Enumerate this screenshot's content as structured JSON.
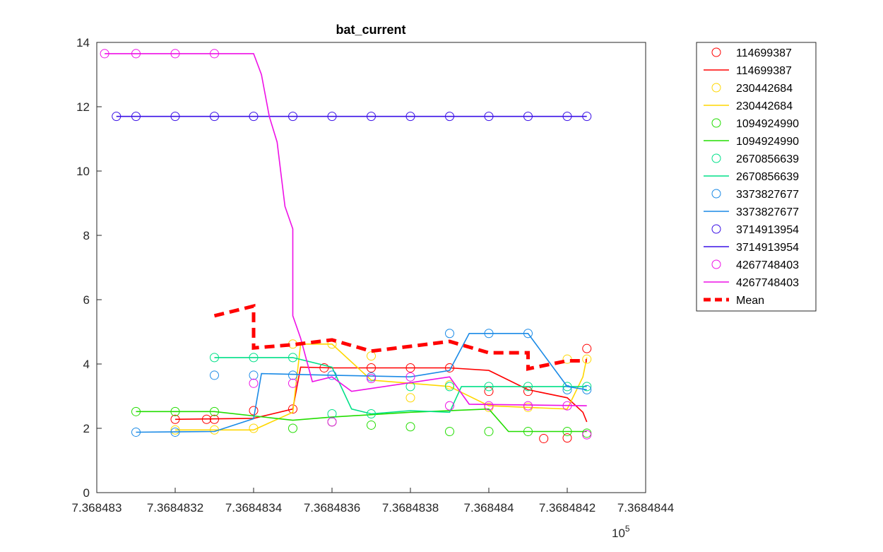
{
  "chart_data": {
    "type": "line",
    "title": "bat_current",
    "xlabel": "",
    "ylabel": "",
    "x_exponent_label": "10",
    "x_exponent": "5",
    "xlim": [
      7.368483,
      7.3684844
    ],
    "ylim": [
      0,
      14
    ],
    "x_ticks": [
      7.368483,
      7.3684832,
      7.3684834,
      7.3684836,
      7.3684838,
      7.368484,
      7.3684842,
      7.3684844
    ],
    "x_tick_labels": [
      "7.368483",
      "7.3684832",
      "7.3684834",
      "7.3684836",
      "7.3684838",
      "7.368484",
      "7.3684842",
      "7.3684844"
    ],
    "y_ticks": [
      0,
      2,
      4,
      6,
      8,
      10,
      12,
      14
    ],
    "y_tick_labels": [
      "0",
      "2",
      "4",
      "6",
      "8",
      "10",
      "12",
      "14"
    ],
    "grid": false,
    "legend_position": "outside-top-right",
    "series": [
      {
        "name": "114699387",
        "color": "#ff0000",
        "line": [
          [
            7.3684832,
            2.28
          ],
          [
            7.3684834,
            2.31
          ],
          [
            7.3684835,
            2.6
          ],
          [
            7.36848352,
            3.9
          ],
          [
            7.3684836,
            3.88
          ],
          [
            7.3684839,
            3.88
          ],
          [
            7.368484,
            3.8
          ],
          [
            7.3684841,
            3.2
          ],
          [
            7.3684842,
            2.95
          ],
          [
            7.36848424,
            2.5
          ],
          [
            7.36848425,
            2.2
          ]
        ],
        "points": [
          [
            7.3684832,
            2.28
          ],
          [
            7.36848328,
            2.28
          ],
          [
            7.3684833,
            2.28
          ],
          [
            7.3684834,
            2.55
          ],
          [
            7.3684835,
            2.6
          ],
          [
            7.36848358,
            3.88
          ],
          [
            7.3684837,
            3.88
          ],
          [
            7.3684838,
            3.88
          ],
          [
            7.3684839,
            3.88
          ],
          [
            7.368484,
            3.15
          ],
          [
            7.3684841,
            3.15
          ],
          [
            7.36848414,
            1.68
          ],
          [
            7.3684842,
            1.7
          ],
          [
            7.36848425,
            4.48
          ]
        ]
      },
      {
        "name": "230442684",
        "color": "#ffd700",
        "line": [
          [
            7.3684832,
            1.95
          ],
          [
            7.3684834,
            1.95
          ],
          [
            7.3684835,
            2.5
          ],
          [
            7.36848352,
            4.62
          ],
          [
            7.3684836,
            4.62
          ],
          [
            7.3684837,
            3.5
          ],
          [
            7.3684839,
            3.3
          ],
          [
            7.368484,
            2.7
          ],
          [
            7.3684842,
            2.6
          ],
          [
            7.36848424,
            3.6
          ],
          [
            7.36848425,
            4.2
          ]
        ],
        "points": [
          [
            7.3684832,
            1.95
          ],
          [
            7.3684833,
            1.95
          ],
          [
            7.3684834,
            2.0
          ],
          [
            7.3684835,
            4.62
          ],
          [
            7.3684836,
            4.62
          ],
          [
            7.3684837,
            4.25
          ],
          [
            7.3684838,
            2.95
          ],
          [
            7.3684839,
            3.35
          ],
          [
            7.368484,
            2.65
          ],
          [
            7.3684841,
            2.65
          ],
          [
            7.3684842,
            4.15
          ],
          [
            7.36848425,
            4.15
          ]
        ]
      },
      {
        "name": "1094924990",
        "color": "#22dd00",
        "line": [
          [
            7.3684831,
            2.52
          ],
          [
            7.3684833,
            2.52
          ],
          [
            7.3684835,
            2.25
          ],
          [
            7.3684836,
            2.35
          ],
          [
            7.3684838,
            2.5
          ],
          [
            7.368484,
            2.6
          ],
          [
            7.36848405,
            1.9
          ],
          [
            7.36848425,
            1.9
          ]
        ],
        "points": [
          [
            7.3684831,
            2.52
          ],
          [
            7.3684832,
            2.52
          ],
          [
            7.3684833,
            2.52
          ],
          [
            7.3684835,
            2.0
          ],
          [
            7.3684836,
            2.2
          ],
          [
            7.3684837,
            2.1
          ],
          [
            7.3684838,
            2.05
          ],
          [
            7.3684839,
            1.9
          ],
          [
            7.368484,
            1.9
          ],
          [
            7.3684841,
            1.9
          ],
          [
            7.3684842,
            1.9
          ],
          [
            7.36848425,
            1.85
          ]
        ]
      },
      {
        "name": "2670856639",
        "color": "#00e088",
        "line": [
          [
            7.3684833,
            4.2
          ],
          [
            7.3684835,
            4.2
          ],
          [
            7.3684836,
            3.9
          ],
          [
            7.36848365,
            2.6
          ],
          [
            7.3684837,
            2.45
          ],
          [
            7.3684838,
            2.55
          ],
          [
            7.3684839,
            2.5
          ],
          [
            7.36848393,
            3.3
          ],
          [
            7.36848425,
            3.3
          ]
        ],
        "points": [
          [
            7.3684833,
            4.2
          ],
          [
            7.3684834,
            4.2
          ],
          [
            7.3684835,
            4.2
          ],
          [
            7.3684836,
            2.45
          ],
          [
            7.3684837,
            2.45
          ],
          [
            7.3684838,
            3.3
          ],
          [
            7.3684839,
            3.3
          ],
          [
            7.368484,
            3.3
          ],
          [
            7.3684841,
            3.3
          ],
          [
            7.3684842,
            3.3
          ],
          [
            7.36848425,
            3.3
          ]
        ]
      },
      {
        "name": "3373827677",
        "color": "#1a8ae6",
        "line": [
          [
            7.3684831,
            1.88
          ],
          [
            7.3684833,
            1.9
          ],
          [
            7.3684834,
            2.3
          ],
          [
            7.36848342,
            3.7
          ],
          [
            7.3684836,
            3.65
          ],
          [
            7.3684838,
            3.6
          ],
          [
            7.3684839,
            3.8
          ],
          [
            7.36848395,
            4.95
          ],
          [
            7.3684841,
            4.95
          ],
          [
            7.3684842,
            3.3
          ],
          [
            7.36848425,
            3.2
          ]
        ],
        "points": [
          [
            7.3684831,
            1.88
          ],
          [
            7.3684832,
            1.88
          ],
          [
            7.3684833,
            3.65
          ],
          [
            7.3684834,
            3.65
          ],
          [
            7.3684835,
            3.65
          ],
          [
            7.3684836,
            3.65
          ],
          [
            7.3684837,
            3.6
          ],
          [
            7.3684839,
            4.95
          ],
          [
            7.368484,
            4.95
          ],
          [
            7.3684841,
            4.95
          ],
          [
            7.3684842,
            3.2
          ],
          [
            7.36848425,
            3.2
          ]
        ]
      },
      {
        "name": "3714913954",
        "color": "#3a10e6",
        "line": [
          [
            7.36848305,
            11.7
          ],
          [
            7.36848425,
            11.7
          ]
        ],
        "points": [
          [
            7.36848305,
            11.7
          ],
          [
            7.3684831,
            11.7
          ],
          [
            7.3684832,
            11.7
          ],
          [
            7.3684833,
            11.7
          ],
          [
            7.3684834,
            11.7
          ],
          [
            7.3684835,
            11.7
          ],
          [
            7.3684836,
            11.7
          ],
          [
            7.3684837,
            11.7
          ],
          [
            7.3684838,
            11.7
          ],
          [
            7.3684839,
            11.7
          ],
          [
            7.368484,
            11.7
          ],
          [
            7.3684841,
            11.7
          ],
          [
            7.3684842,
            11.7
          ],
          [
            7.36848425,
            11.7
          ]
        ]
      },
      {
        "name": "4267748403",
        "color": "#ee10e6",
        "line": [
          [
            7.36848302,
            13.65
          ],
          [
            7.3684834,
            13.65
          ],
          [
            7.36848342,
            13.0
          ],
          [
            7.36848344,
            11.7
          ],
          [
            7.36848346,
            10.9
          ],
          [
            7.36848348,
            8.9
          ],
          [
            7.3684835,
            8.2
          ],
          [
            7.3684835,
            5.5
          ],
          [
            7.36848352,
            4.8
          ],
          [
            7.36848355,
            3.45
          ],
          [
            7.3684836,
            3.6
          ],
          [
            7.36848365,
            3.15
          ],
          [
            7.3684839,
            3.6
          ],
          [
            7.36848395,
            2.75
          ],
          [
            7.36848425,
            2.7
          ]
        ],
        "points": [
          [
            7.36848302,
            13.65
          ],
          [
            7.3684831,
            13.65
          ],
          [
            7.3684832,
            13.65
          ],
          [
            7.3684833,
            13.65
          ],
          [
            7.3684834,
            3.4
          ],
          [
            7.3684835,
            3.4
          ],
          [
            7.3684836,
            2.2
          ],
          [
            7.3684837,
            3.55
          ],
          [
            7.3684838,
            3.6
          ],
          [
            7.3684839,
            2.7
          ],
          [
            7.368484,
            2.7
          ],
          [
            7.3684841,
            2.7
          ],
          [
            7.3684842,
            2.7
          ],
          [
            7.36848425,
            1.8
          ]
        ]
      },
      {
        "name": "Mean",
        "color": "#ff0000",
        "dashed": true,
        "line": [
          [
            7.3684833,
            5.5
          ],
          [
            7.3684834,
            5.8
          ],
          [
            7.3684834,
            4.5
          ],
          [
            7.3684835,
            4.6
          ],
          [
            7.3684836,
            4.75
          ],
          [
            7.3684837,
            4.4
          ],
          [
            7.3684838,
            4.55
          ],
          [
            7.3684839,
            4.7
          ],
          [
            7.368484,
            4.35
          ],
          [
            7.3684841,
            4.35
          ],
          [
            7.3684841,
            3.85
          ],
          [
            7.3684842,
            4.1
          ],
          [
            7.36848425,
            4.1
          ]
        ]
      }
    ]
  }
}
